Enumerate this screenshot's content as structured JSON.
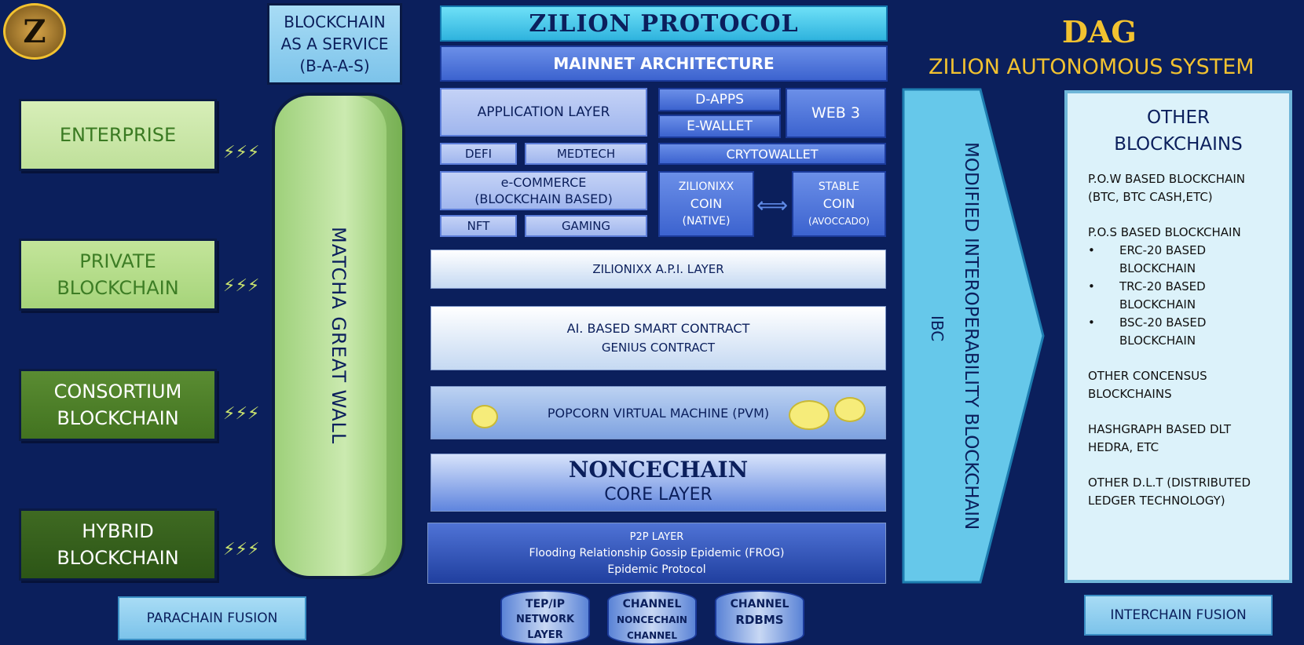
{
  "logo": {
    "text": "Z"
  },
  "baas": {
    "label": "BLOCKCHAIN AS A SERVICE (B-A-A-S)"
  },
  "zilion_protocol": {
    "title": "ZILION PROTOCOL"
  },
  "mainnet": {
    "title": "MAINNET ARCHITECTURE"
  },
  "dag": {
    "title": "DAG",
    "subtitle": "ZILION AUTONOMOUS SYSTEM"
  },
  "left_boxes": [
    {
      "label": "ENTERPRISE"
    },
    {
      "label": "PRIVATE BLOCKCHAIN"
    },
    {
      "label": "CONSORTIUM BLOCKCHAIN"
    },
    {
      "label": "HYBRID BLOCKCHAIN"
    }
  ],
  "great_wall": {
    "label": "MATCHA GREAT WALL"
  },
  "app": {
    "application_layer": "APPLICATION LAYER",
    "d_apps": "D-APPS",
    "e_wallet": "E-WALLET",
    "web3": "WEB 3",
    "defi": "DEFI",
    "medtech": "MEDTECH",
    "crytowallet": "CRYTOWALLET",
    "ecommerce_line1": "e-COMMERCE",
    "ecommerce_line2": "(BLOCKCHAIN BASED)",
    "zilionixx_line1": "ZILIONIXX",
    "zilionixx_line2": "COIN",
    "zilionixx_line3": "(NATIVE)",
    "swap_icon": "⟺",
    "stable_line1": "STABLE",
    "stable_line2": "COIN",
    "stable_line3": "(AVOCCADO)",
    "nft": "NFT",
    "gaming": "GAMING"
  },
  "api_layer": "ZILIONIXX A.P.I. LAYER",
  "smart_contract": {
    "line1": "AI. BASED SMART CONTRACT",
    "line2": "GENIUS CONTRACT"
  },
  "pvm": "POPCORN VIRTUAL MACHINE (PVM)",
  "noncechain": {
    "title": "NONCECHAIN",
    "subtitle": "CORE LAYER"
  },
  "p2p": {
    "title": "P2P LAYER",
    "line1": "Flooding Relationship Gossip Epidemic (FROG)",
    "line2": "Epidemic Protocol"
  },
  "cylinders": [
    {
      "line1": "TEP/IP",
      "line2": "NETWORK",
      "line3": "LAYER"
    },
    {
      "line1": "CHANNEL",
      "line2": "NONCECHAIN",
      "line3": "CHANNEL"
    },
    {
      "line1": "CHANNEL",
      "line2": "",
      "line3": "RDBMS"
    }
  ],
  "ibc": {
    "line1": "MODIFIED INTEROPERABILITY BLOCKCHAIN",
    "line2": "IBC"
  },
  "other": {
    "title_line1": "OTHER",
    "title_line2": "BLOCKCHAINS",
    "pow_line1": "P.O.W BASED BLOCKCHAIN",
    "pow_line2": "(BTC, BTC CASH,ETC)",
    "pos_title": "P.O.S BASED BLOCKCHAIN",
    "bullets": [
      {
        "line1": "ERC-20 BASED",
        "line2": "BLOCKCHAIN"
      },
      {
        "line1": "TRC-20 BASED",
        "line2": "BLOCKCHAIN"
      },
      {
        "line1": "BSC-20 BASED",
        "line2": "BLOCKCHAIN"
      }
    ],
    "consensus_line1": "OTHER CONCENSUS",
    "consensus_line2": "BLOCKCHAINS",
    "hashgraph_line1": "HASHGRAPH BASED DLT",
    "hashgraph_line2": "HEDRA, ETC",
    "dlt_line1": "OTHER D.L.T (DISTRIBUTED",
    "dlt_line2": "LEDGER TECHNOLOGY)"
  },
  "parachain": "PARACHAIN FUSION",
  "interchain": "INTERCHAIN FUSION",
  "colors": {
    "background": "#0b1f5c",
    "gold": "#f2c230",
    "green_light": "#cfe9ad",
    "sky": "#9ad3f2"
  }
}
